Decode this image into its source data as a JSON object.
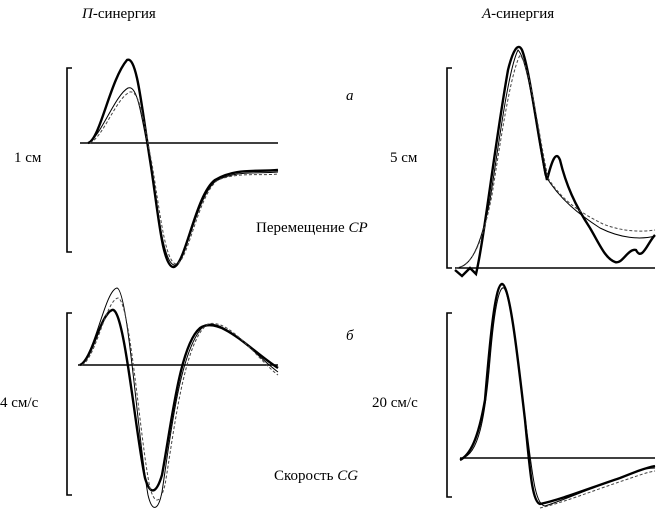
{
  "figure": {
    "columns": [
      {
        "italic": "П",
        "text": "-синергия"
      },
      {
        "italic": "А",
        "text": "-синергия"
      }
    ],
    "rows": [
      {
        "letter": "а",
        "label": "Перемещение",
        "label_italic": "CP",
        "scales": [
          "1 см",
          "5 см"
        ]
      },
      {
        "letter": "б",
        "label": "Скорость",
        "label_italic": "CG",
        "scales": [
          "4 см/с",
          "20 см/с"
        ]
      }
    ]
  }
}
